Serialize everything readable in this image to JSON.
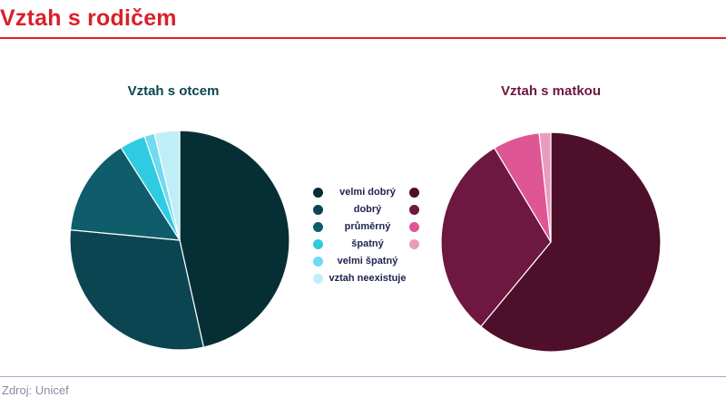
{
  "header": {
    "title": "Vztah s rodičem"
  },
  "footer": {
    "source": "Zdroj: Unicef"
  },
  "legend": {
    "labels": [
      "velmi dobrý",
      "dobrý",
      "průměrný",
      "špatný",
      "velmi špatný",
      "vztah neexistuje"
    ]
  },
  "chart_data": [
    {
      "type": "pie",
      "title": "Vztah s otcem",
      "categories": [
        "velmi dobrý",
        "dobrý",
        "průměrný",
        "špatný",
        "velmi špatný",
        "vztah neexistuje"
      ],
      "values": [
        46.5,
        30,
        14.5,
        3.8,
        1.5,
        3.7
      ],
      "colors": [
        "#062f35",
        "#0b4552",
        "#0f5d6a",
        "#2fcbe3",
        "#6fdaf0",
        "#bfeef8"
      ],
      "unit": "%"
    },
    {
      "type": "pie",
      "title": "Vztah s matkou",
      "categories": [
        "velmi dobrý",
        "dobrý",
        "průměrný",
        "špatný"
      ],
      "values": [
        61,
        30.4,
        6.9,
        1.7
      ],
      "colors": [
        "#4e0f2a",
        "#6e1741",
        "#de5694",
        "#eb9bbd"
      ],
      "unit": "%"
    }
  ]
}
